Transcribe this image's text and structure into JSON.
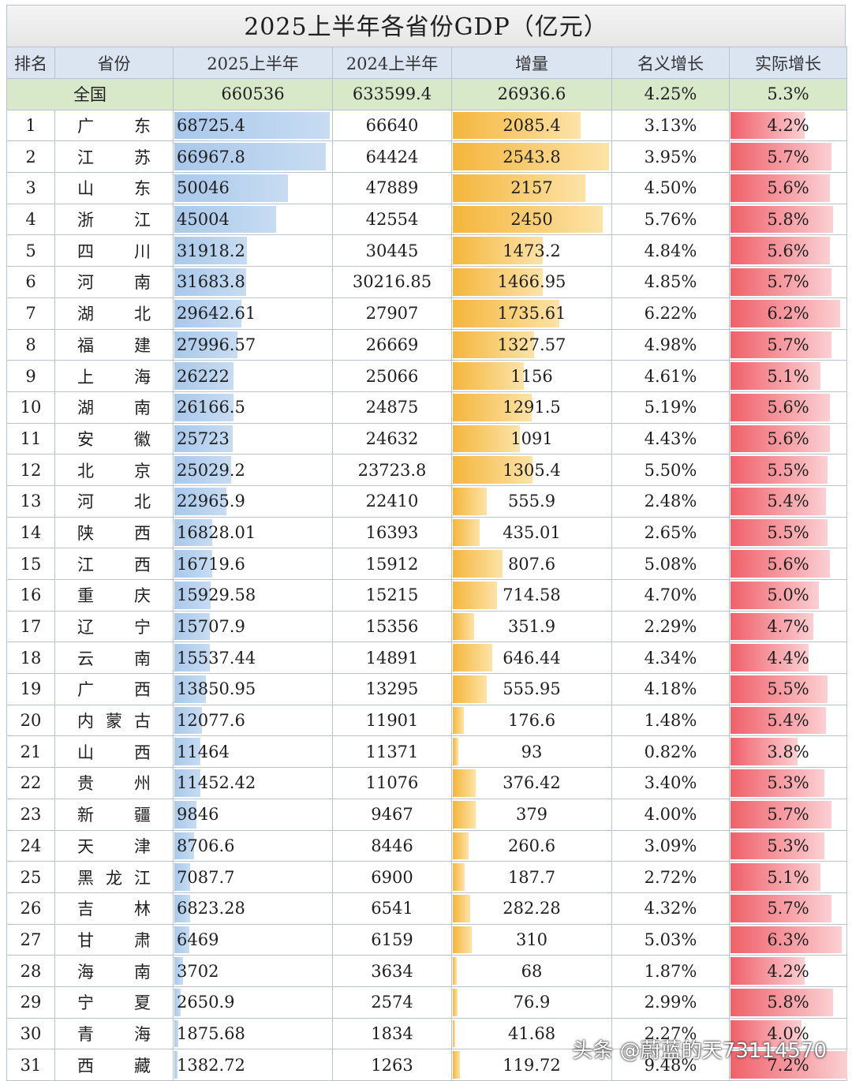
{
  "title": "2025上半年各省份GDP（亿元）",
  "headers": [
    "排名",
    "省份",
    "2025上半年",
    "2024上半年",
    "增量",
    "名义增长",
    "实际增长"
  ],
  "national": {
    "label": "全国",
    "gdp2025": "660536",
    "gdp2024": "633599.4",
    "increase": "26936.6",
    "nominal": "4.25%",
    "real": "5.3%"
  },
  "rows": [
    {
      "rank": "1",
      "chars": [
        "广",
        "东"
      ],
      "gdp2025": "68725.4",
      "gdp2024": "66640",
      "increase": "2085.4",
      "nominal": "3.13%",
      "real": "4.2%"
    },
    {
      "rank": "2",
      "chars": [
        "江",
        "苏"
      ],
      "gdp2025": "66967.8",
      "gdp2024": "64424",
      "increase": "2543.8",
      "nominal": "3.95%",
      "real": "5.7%"
    },
    {
      "rank": "3",
      "chars": [
        "山",
        "东"
      ],
      "gdp2025": "50046",
      "gdp2024": "47889",
      "increase": "2157",
      "nominal": "4.50%",
      "real": "5.6%"
    },
    {
      "rank": "4",
      "chars": [
        "浙",
        "江"
      ],
      "gdp2025": "45004",
      "gdp2024": "42554",
      "increase": "2450",
      "nominal": "5.76%",
      "real": "5.8%"
    },
    {
      "rank": "5",
      "chars": [
        "四",
        "川"
      ],
      "gdp2025": "31918.2",
      "gdp2024": "30445",
      "increase": "1473.2",
      "nominal": "4.84%",
      "real": "5.6%"
    },
    {
      "rank": "6",
      "chars": [
        "河",
        "南"
      ],
      "gdp2025": "31683.8",
      "gdp2024": "30216.85",
      "increase": "1466.95",
      "nominal": "4.85%",
      "real": "5.7%"
    },
    {
      "rank": "7",
      "chars": [
        "湖",
        "北"
      ],
      "gdp2025": "29642.61",
      "gdp2024": "27907",
      "increase": "1735.61",
      "nominal": "6.22%",
      "real": "6.2%"
    },
    {
      "rank": "8",
      "chars": [
        "福",
        "建"
      ],
      "gdp2025": "27996.57",
      "gdp2024": "26669",
      "increase": "1327.57",
      "nominal": "4.98%",
      "real": "5.7%"
    },
    {
      "rank": "9",
      "chars": [
        "上",
        "海"
      ],
      "gdp2025": "26222",
      "gdp2024": "25066",
      "increase": "1156",
      "nominal": "4.61%",
      "real": "5.1%"
    },
    {
      "rank": "10",
      "chars": [
        "湖",
        "南"
      ],
      "gdp2025": "26166.5",
      "gdp2024": "24875",
      "increase": "1291.5",
      "nominal": "5.19%",
      "real": "5.6%"
    },
    {
      "rank": "11",
      "chars": [
        "安",
        "徽"
      ],
      "gdp2025": "25723",
      "gdp2024": "24632",
      "increase": "1091",
      "nominal": "4.43%",
      "real": "5.6%"
    },
    {
      "rank": "12",
      "chars": [
        "北",
        "京"
      ],
      "gdp2025": "25029.2",
      "gdp2024": "23723.8",
      "increase": "1305.4",
      "nominal": "5.50%",
      "real": "5.5%"
    },
    {
      "rank": "13",
      "chars": [
        "河",
        "北"
      ],
      "gdp2025": "22965.9",
      "gdp2024": "22410",
      "increase": "555.9",
      "nominal": "2.48%",
      "real": "5.4%"
    },
    {
      "rank": "14",
      "chars": [
        "陕",
        "西"
      ],
      "gdp2025": "16828.01",
      "gdp2024": "16393",
      "increase": "435.01",
      "nominal": "2.65%",
      "real": "5.5%"
    },
    {
      "rank": "15",
      "chars": [
        "江",
        "西"
      ],
      "gdp2025": "16719.6",
      "gdp2024": "15912",
      "increase": "807.6",
      "nominal": "5.08%",
      "real": "5.6%"
    },
    {
      "rank": "16",
      "chars": [
        "重",
        "庆"
      ],
      "gdp2025": "15929.58",
      "gdp2024": "15215",
      "increase": "714.58",
      "nominal": "4.70%",
      "real": "5.0%"
    },
    {
      "rank": "17",
      "chars": [
        "辽",
        "宁"
      ],
      "gdp2025": "15707.9",
      "gdp2024": "15356",
      "increase": "351.9",
      "nominal": "2.29%",
      "real": "4.7%"
    },
    {
      "rank": "18",
      "chars": [
        "云",
        "南"
      ],
      "gdp2025": "15537.44",
      "gdp2024": "14891",
      "increase": "646.44",
      "nominal": "4.34%",
      "real": "4.4%"
    },
    {
      "rank": "19",
      "chars": [
        "广",
        "西"
      ],
      "gdp2025": "13850.95",
      "gdp2024": "13295",
      "increase": "555.95",
      "nominal": "4.18%",
      "real": "5.5%"
    },
    {
      "rank": "20",
      "chars": [
        "内",
        "蒙",
        "古"
      ],
      "gdp2025": "12077.6",
      "gdp2024": "11901",
      "increase": "176.6",
      "nominal": "1.48%",
      "real": "5.4%"
    },
    {
      "rank": "21",
      "chars": [
        "山",
        "西"
      ],
      "gdp2025": "11464",
      "gdp2024": "11371",
      "increase": "93",
      "nominal": "0.82%",
      "real": "3.8%"
    },
    {
      "rank": "22",
      "chars": [
        "贵",
        "州"
      ],
      "gdp2025": "11452.42",
      "gdp2024": "11076",
      "increase": "376.42",
      "nominal": "3.40%",
      "real": "5.3%"
    },
    {
      "rank": "23",
      "chars": [
        "新",
        "疆"
      ],
      "gdp2025": "9846",
      "gdp2024": "9467",
      "increase": "379",
      "nominal": "4.00%",
      "real": "5.7%"
    },
    {
      "rank": "24",
      "chars": [
        "天",
        "津"
      ],
      "gdp2025": "8706.6",
      "gdp2024": "8446",
      "increase": "260.6",
      "nominal": "3.09%",
      "real": "5.3%"
    },
    {
      "rank": "25",
      "chars": [
        "黑",
        "龙",
        "江"
      ],
      "gdp2025": "7087.7",
      "gdp2024": "6900",
      "increase": "187.7",
      "nominal": "2.72%",
      "real": "5.1%"
    },
    {
      "rank": "26",
      "chars": [
        "吉",
        "林"
      ],
      "gdp2025": "6823.28",
      "gdp2024": "6541",
      "increase": "282.28",
      "nominal": "4.32%",
      "real": "5.7%"
    },
    {
      "rank": "27",
      "chars": [
        "甘",
        "肃"
      ],
      "gdp2025": "6469",
      "gdp2024": "6159",
      "increase": "310",
      "nominal": "5.03%",
      "real": "6.3%"
    },
    {
      "rank": "28",
      "chars": [
        "海",
        "南"
      ],
      "gdp2025": "3702",
      "gdp2024": "3634",
      "increase": "68",
      "nominal": "1.87%",
      "real": "4.2%"
    },
    {
      "rank": "29",
      "chars": [
        "宁",
        "夏"
      ],
      "gdp2025": "2650.9",
      "gdp2024": "2574",
      "increase": "76.9",
      "nominal": "2.99%",
      "real": "5.8%"
    },
    {
      "rank": "30",
      "chars": [
        "青",
        "海"
      ],
      "gdp2025": "1875.68",
      "gdp2024": "1834",
      "increase": "41.68",
      "nominal": "2.27%",
      "real": "4.0%"
    },
    {
      "rank": "31",
      "chars": [
        "西",
        "藏"
      ],
      "gdp2025": "1382.72",
      "gdp2024": "1263",
      "increase": "119.72",
      "nominal": "9.48%",
      "real": "7.2%"
    }
  ],
  "watermark": "头条 @蔚蓝的天73114570",
  "colors": {
    "gdp_bar": "#a9c8ea",
    "increase_bar": "#f4b63c",
    "real_bar": "#f0606a",
    "national_row": "#d8e9c9",
    "header_row": "#dbe5f1"
  }
}
